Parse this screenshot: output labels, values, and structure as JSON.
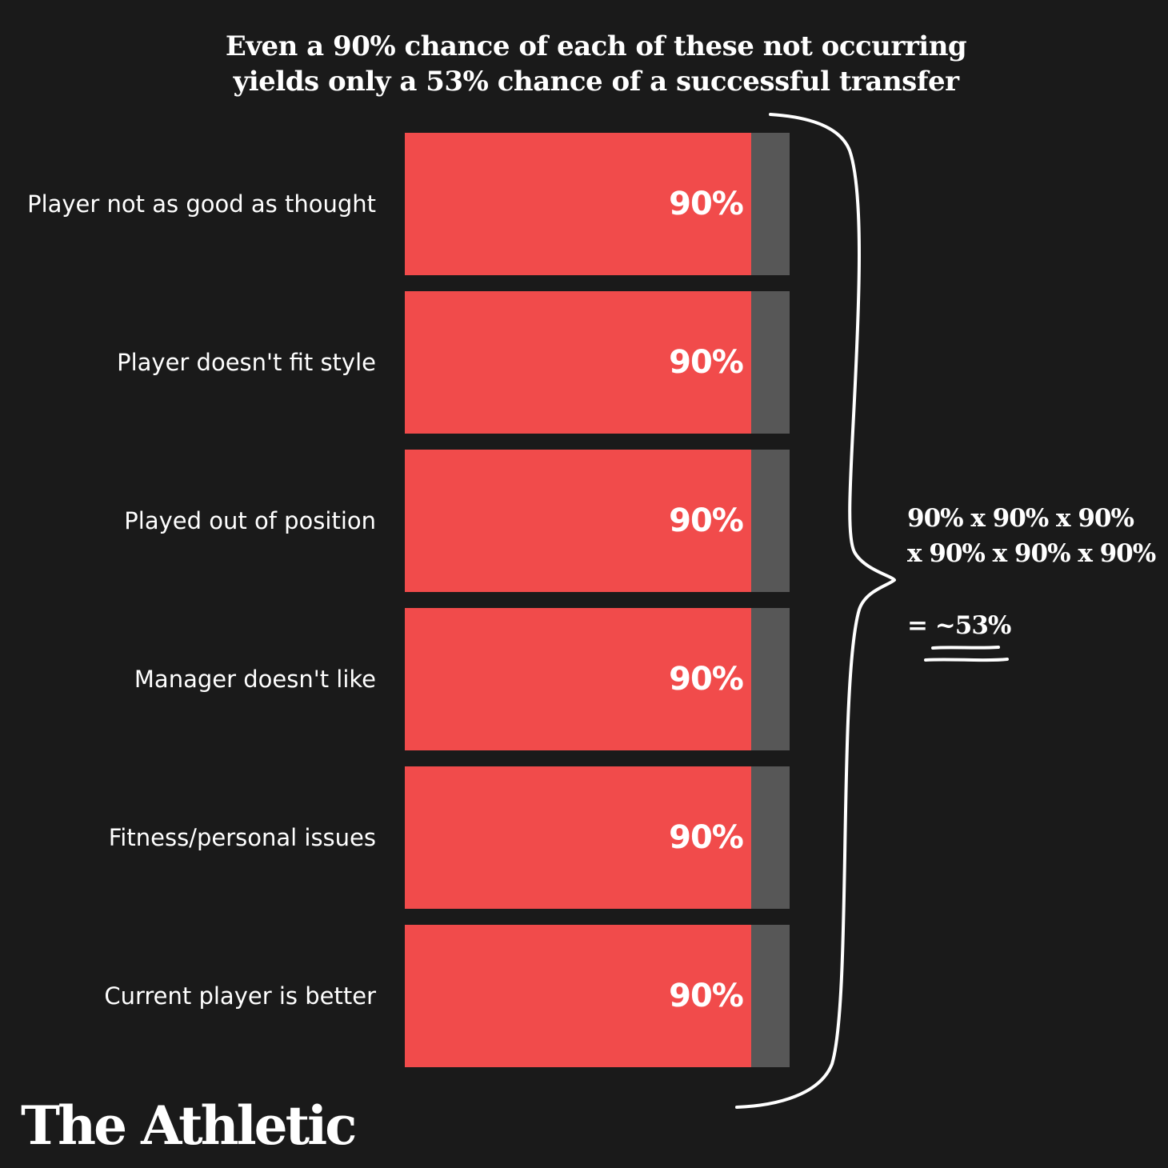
{
  "chart_data": {
    "type": "bar",
    "orientation": "horizontal",
    "stacked_to_100": true,
    "title_lines": [
      "Even a 90% chance of each of these not occurring",
      "yields only a 53% chance of a successful transfer"
    ],
    "categories": [
      "Player not as good as thought",
      "Player doesn't fit style",
      "Played out of position",
      "Manager doesn't like",
      "Fitness/personal issues",
      "Current player is better"
    ],
    "values": [
      90,
      90,
      90,
      90,
      90,
      90
    ],
    "value_labels": [
      "90%",
      "90%",
      "90%",
      "90%",
      "90%",
      "90%"
    ],
    "xlim": [
      0,
      100
    ],
    "grid": false,
    "legend": "none",
    "annotation": {
      "equation_lines": [
        "90% x 90% x 90%",
        "x 90% x 90% x 90%"
      ],
      "result_prefix": "= ",
      "result_value": "~53%"
    },
    "colors": {
      "background": "#1a1a1a",
      "bar_fill": "#f14b4b",
      "bar_remainder": "#575757",
      "text": "#ffffff"
    }
  },
  "brand": {
    "logo_text": "The Athletic"
  }
}
